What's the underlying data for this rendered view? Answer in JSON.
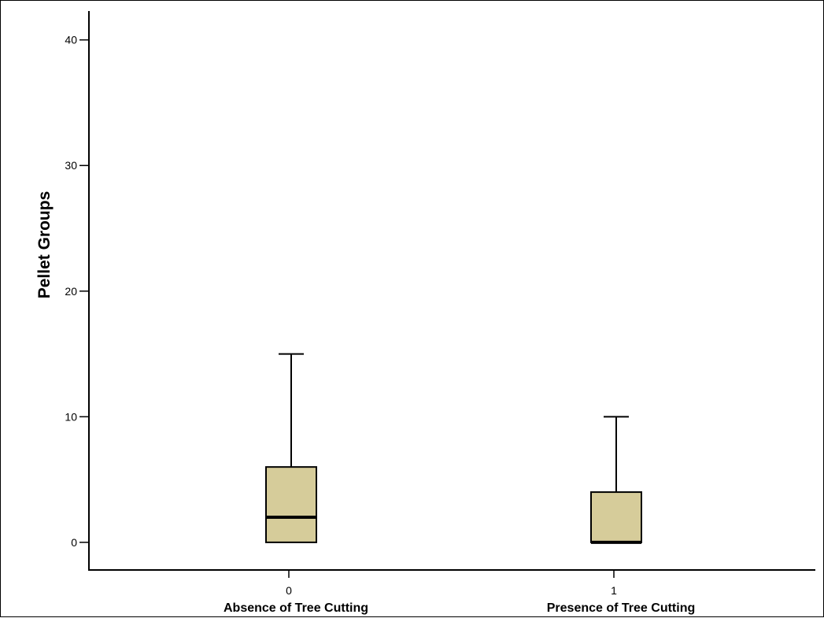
{
  "chart_data": {
    "type": "boxplot",
    "title": "",
    "xlabel": "",
    "ylabel": "Pellet Groups",
    "ylim": [
      -2.2,
      42.3
    ],
    "yticks": [
      0,
      10,
      20,
      30,
      40
    ],
    "grid": false,
    "box_fill": "#d6cc9a",
    "categories": [
      {
        "code": "0",
        "label": "Absence of Tree Cutting"
      },
      {
        "code": "1",
        "label": "Presence of Tree Cutting"
      }
    ],
    "boxes": [
      {
        "min": 0,
        "q1": 0,
        "median": 2,
        "q3": 6,
        "max": 15
      },
      {
        "min": 0,
        "q1": 0,
        "median": 0,
        "q3": 4,
        "max": 10
      }
    ]
  }
}
